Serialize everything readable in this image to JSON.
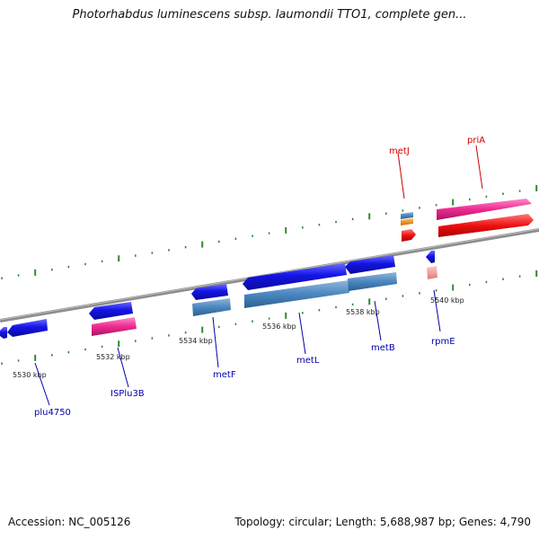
{
  "title": "Photorhabdus luminescens subsp. laumondii TTO1, complete gen...",
  "footer": {
    "accession": "Accession: NC_005126",
    "summary": "Topology: circular; Length: 5,688,987 bp; Genes: 4,790"
  },
  "colors": {
    "backbone": "#8c8c8c",
    "tick": "#2e8b2e",
    "forward_label": "#cc0000",
    "reverse_label": "#0000aa",
    "cds": "#1414e6",
    "rrna_light": "#4a86c0",
    "pink": "#ee2a90",
    "red": "#ee1111",
    "orange": "#ee7f00"
  },
  "map": {
    "tick_labels": [
      "5530 kbp",
      "5532 kbp",
      "5534 kbp",
      "5536 kbp",
      "5538 kbp",
      "5540 kbp"
    ],
    "forward_genes": [
      {
        "name": "metJ"
      },
      {
        "name": "priA"
      }
    ],
    "reverse_genes": [
      {
        "name": "plu4750"
      },
      {
        "name": "ISPlu3B"
      },
      {
        "name": "metF"
      },
      {
        "name": "metL"
      },
      {
        "name": "metB"
      },
      {
        "name": "rpmE"
      }
    ]
  }
}
